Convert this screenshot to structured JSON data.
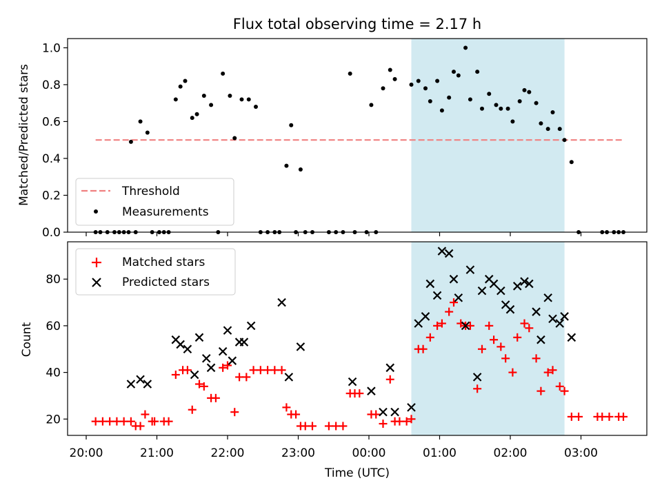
{
  "chart_data": {
    "title": "Flux total observing time = 2.17 h",
    "xlabel": "Time (UTC)",
    "x_ticks": [
      "20:00",
      "21:00",
      "22:00",
      "23:00",
      "00:00",
      "01:00",
      "02:00",
      "03:00"
    ],
    "shaded_interval": {
      "start": "00:36",
      "end": "02:46",
      "color": "#add8e6"
    },
    "panels": [
      {
        "type": "scatter",
        "ylabel": "Matched/Predicted stars",
        "ylim": [
          0,
          1.05
        ],
        "y_ticks": [
          "0.0",
          "0.2",
          "0.4",
          "0.6",
          "0.8",
          "1.0"
        ],
        "legend_position": "lower-left",
        "threshold": {
          "name": "Threshold",
          "value": 0.5,
          "from": "20:08",
          "to": "23:36",
          "to_next_day": "03:36",
          "color": "#f08080"
        },
        "series": [
          {
            "name": "Measurements",
            "color": "#000000",
            "points": [
              [
                "20:08",
                0
              ],
              [
                "20:12",
                0
              ],
              [
                "20:18",
                0
              ],
              [
                "20:24",
                0
              ],
              [
                "20:28",
                0
              ],
              [
                "20:32",
                0
              ],
              [
                "20:36",
                0
              ],
              [
                "20:38",
                0.49
              ],
              [
                "20:42",
                0
              ],
              [
                "20:46",
                0.6
              ],
              [
                "20:52",
                0.54
              ],
              [
                "20:56",
                0
              ],
              [
                "21:02",
                0
              ],
              [
                "21:06",
                0
              ],
              [
                "21:10",
                0
              ],
              [
                "21:16",
                0.72
              ],
              [
                "21:20",
                0.79
              ],
              [
                "21:24",
                0.82
              ],
              [
                "21:30",
                0.62
              ],
              [
                "21:34",
                0.64
              ],
              [
                "21:40",
                0.74
              ],
              [
                "21:46",
                0.69
              ],
              [
                "21:52",
                0
              ],
              [
                "21:56",
                0.86
              ],
              [
                "22:02",
                0.74
              ],
              [
                "22:06",
                0.51
              ],
              [
                "22:12",
                0.72
              ],
              [
                "22:18",
                0.72
              ],
              [
                "22:24",
                0.68
              ],
              [
                "22:28",
                0
              ],
              [
                "22:34",
                0
              ],
              [
                "22:40",
                0
              ],
              [
                "22:44",
                0
              ],
              [
                "22:50",
                0.36
              ],
              [
                "22:54",
                0.58
              ],
              [
                "22:58",
                0
              ],
              [
                "23:02",
                0.34
              ],
              [
                "23:06",
                0
              ],
              [
                "23:12",
                0
              ],
              [
                "23:26",
                0
              ],
              [
                "23:32",
                0
              ],
              [
                "23:38",
                0
              ],
              [
                "23:44",
                0.86
              ],
              [
                "23:48",
                0
              ],
              [
                "23:58",
                0
              ],
              [
                "00:02",
                0.69
              ],
              [
                "00:06",
                0
              ],
              [
                "00:12",
                0.78
              ],
              [
                "00:18",
                0.88
              ],
              [
                "00:22",
                0.83
              ],
              [
                "00:36",
                0.8
              ],
              [
                "00:42",
                0.82
              ],
              [
                "00:48",
                0.78
              ],
              [
                "00:52",
                0.71
              ],
              [
                "00:58",
                0.82
              ],
              [
                "01:02",
                0.66
              ],
              [
                "01:08",
                0.73
              ],
              [
                "01:12",
                0.87
              ],
              [
                "01:16",
                0.85
              ],
              [
                "01:22",
                1.0
              ],
              [
                "01:26",
                0.72
              ],
              [
                "01:32",
                0.87
              ],
              [
                "01:36",
                0.67
              ],
              [
                "01:42",
                0.75
              ],
              [
                "01:48",
                0.69
              ],
              [
                "01:52",
                0.67
              ],
              [
                "01:58",
                0.67
              ],
              [
                "02:02",
                0.6
              ],
              [
                "02:08",
                0.71
              ],
              [
                "02:12",
                0.77
              ],
              [
                "02:16",
                0.76
              ],
              [
                "02:22",
                0.7
              ],
              [
                "02:26",
                0.59
              ],
              [
                "02:32",
                0.56
              ],
              [
                "02:36",
                0.65
              ],
              [
                "02:42",
                0.56
              ],
              [
                "02:46",
                0.5
              ],
              [
                "02:52",
                0.38
              ],
              [
                "02:58",
                0
              ],
              [
                "03:18",
                0
              ],
              [
                "03:22",
                0
              ],
              [
                "03:28",
                0
              ],
              [
                "03:32",
                0
              ],
              [
                "03:36",
                0
              ]
            ]
          }
        ]
      },
      {
        "type": "scatter",
        "ylabel": "Count",
        "ylim": [
          13,
          96
        ],
        "y_ticks": [
          "20",
          "40",
          "60",
          "80"
        ],
        "legend_position": "upper-left",
        "series": [
          {
            "name": "Matched stars",
            "marker": "plus",
            "color": "#ff0000",
            "points": [
              [
                "20:08",
                19
              ],
              [
                "20:14",
                19
              ],
              [
                "20:20",
                19
              ],
              [
                "20:26",
                19
              ],
              [
                "20:32",
                19
              ],
              [
                "20:38",
                19
              ],
              [
                "20:42",
                17
              ],
              [
                "20:46",
                17
              ],
              [
                "20:50",
                22
              ],
              [
                "20:56",
                19
              ],
              [
                "20:58",
                19
              ],
              [
                "21:06",
                19
              ],
              [
                "21:10",
                19
              ],
              [
                "21:16",
                39
              ],
              [
                "21:22",
                41
              ],
              [
                "21:26",
                41
              ],
              [
                "21:30",
                24
              ],
              [
                "21:36",
                35
              ],
              [
                "21:40",
                34
              ],
              [
                "21:46",
                29
              ],
              [
                "21:50",
                29
              ],
              [
                "21:56",
                42
              ],
              [
                "22:00",
                43
              ],
              [
                "22:06",
                23
              ],
              [
                "22:10",
                38
              ],
              [
                "22:16",
                38
              ],
              [
                "22:22",
                41
              ],
              [
                "22:28",
                41
              ],
              [
                "22:34",
                41
              ],
              [
                "22:40",
                41
              ],
              [
                "22:46",
                41
              ],
              [
                "22:50",
                25
              ],
              [
                "22:54",
                22
              ],
              [
                "22:58",
                22
              ],
              [
                "23:02",
                17
              ],
              [
                "23:06",
                17
              ],
              [
                "23:12",
                17
              ],
              [
                "23:26",
                17
              ],
              [
                "23:32",
                17
              ],
              [
                "23:38",
                17
              ],
              [
                "23:44",
                31
              ],
              [
                "23:48",
                31
              ],
              [
                "23:52",
                31
              ],
              [
                "00:02",
                22
              ],
              [
                "00:06",
                22
              ],
              [
                "00:12",
                18
              ],
              [
                "00:18",
                37
              ],
              [
                "00:22",
                19
              ],
              [
                "00:26",
                19
              ],
              [
                "00:32",
                19
              ],
              [
                "00:36",
                20
              ],
              [
                "00:42",
                50
              ],
              [
                "00:46",
                50
              ],
              [
                "00:52",
                55
              ],
              [
                "00:58",
                60
              ],
              [
                "01:02",
                61
              ],
              [
                "01:08",
                66
              ],
              [
                "01:12",
                70
              ],
              [
                "01:18",
                61
              ],
              [
                "01:22",
                60
              ],
              [
                "01:26",
                60
              ],
              [
                "01:32",
                33
              ],
              [
                "01:36",
                50
              ],
              [
                "01:42",
                60
              ],
              [
                "01:46",
                54
              ],
              [
                "01:52",
                51
              ],
              [
                "01:56",
                46
              ],
              [
                "02:02",
                40
              ],
              [
                "02:06",
                55
              ],
              [
                "02:12",
                61
              ],
              [
                "02:16",
                59
              ],
              [
                "02:22",
                46
              ],
              [
                "02:26",
                32
              ],
              [
                "02:32",
                40
              ],
              [
                "02:36",
                41
              ],
              [
                "02:42",
                34
              ],
              [
                "02:46",
                32
              ],
              [
                "02:52",
                21
              ],
              [
                "02:58",
                21
              ],
              [
                "03:14",
                21
              ],
              [
                "03:18",
                21
              ],
              [
                "03:24",
                21
              ],
              [
                "03:32",
                21
              ],
              [
                "03:36",
                21
              ]
            ]
          },
          {
            "name": "Predicted stars",
            "marker": "x",
            "color": "#000000",
            "points": [
              [
                "20:38",
                35
              ],
              [
                "20:46",
                37
              ],
              [
                "20:52",
                35
              ],
              [
                "21:16",
                54
              ],
              [
                "21:20",
                52
              ],
              [
                "21:26",
                50
              ],
              [
                "21:32",
                39
              ],
              [
                "21:36",
                55
              ],
              [
                "21:42",
                46
              ],
              [
                "21:46",
                42
              ],
              [
                "21:56",
                49
              ],
              [
                "22:00",
                58
              ],
              [
                "22:04",
                45
              ],
              [
                "22:10",
                53
              ],
              [
                "22:14",
                53
              ],
              [
                "22:20",
                60
              ],
              [
                "22:46",
                70
              ],
              [
                "22:52",
                38
              ],
              [
                "23:02",
                51
              ],
              [
                "23:46",
                36
              ],
              [
                "00:02",
                32
              ],
              [
                "00:12",
                23
              ],
              [
                "00:18",
                42
              ],
              [
                "00:22",
                23
              ],
              [
                "00:36",
                25
              ],
              [
                "00:42",
                61
              ],
              [
                "00:48",
                64
              ],
              [
                "00:52",
                78
              ],
              [
                "00:58",
                73
              ],
              [
                "01:02",
                92
              ],
              [
                "01:08",
                91
              ],
              [
                "01:12",
                80
              ],
              [
                "01:16",
                72
              ],
              [
                "01:22",
                60
              ],
              [
                "01:26",
                84
              ],
              [
                "01:32",
                38
              ],
              [
                "01:36",
                75
              ],
              [
                "01:42",
                80
              ],
              [
                "01:46",
                78
              ],
              [
                "01:52",
                75
              ],
              [
                "01:56",
                69
              ],
              [
                "02:00",
                67
              ],
              [
                "02:06",
                77
              ],
              [
                "02:12",
                79
              ],
              [
                "02:16",
                78
              ],
              [
                "02:22",
                66
              ],
              [
                "02:26",
                54
              ],
              [
                "02:32",
                72
              ],
              [
                "02:36",
                63
              ],
              [
                "02:42",
                61
              ],
              [
                "02:46",
                64
              ],
              [
                "02:52",
                55
              ]
            ]
          }
        ]
      }
    ]
  }
}
